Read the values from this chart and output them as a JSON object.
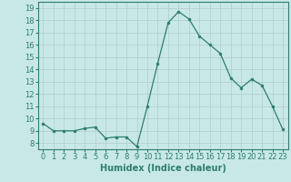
{
  "x": [
    0,
    1,
    2,
    3,
    4,
    5,
    6,
    7,
    8,
    9,
    10,
    11,
    12,
    13,
    14,
    15,
    16,
    17,
    18,
    19,
    20,
    21,
    22,
    23
  ],
  "y": [
    9.6,
    9.0,
    9.0,
    9.0,
    9.2,
    9.3,
    8.4,
    8.5,
    8.5,
    7.7,
    11.0,
    14.5,
    17.8,
    18.7,
    18.1,
    16.7,
    16.0,
    15.3,
    13.3,
    12.5,
    13.2,
    12.7,
    11.0,
    9.1
  ],
  "line_color": "#2e7d6e",
  "marker": "o",
  "marker_size": 2,
  "bg_color": "#c8e8e8",
  "grid_color": "#b0cccc",
  "xlabel": "Humidex (Indice chaleur)",
  "xlabel_fontsize": 7,
  "tick_fontsize": 6,
  "ylim": [
    7.5,
    19.5
  ],
  "yticks": [
    8,
    9,
    10,
    11,
    12,
    13,
    14,
    15,
    16,
    17,
    18,
    19
  ],
  "xlim": [
    -0.5,
    23.5
  ]
}
